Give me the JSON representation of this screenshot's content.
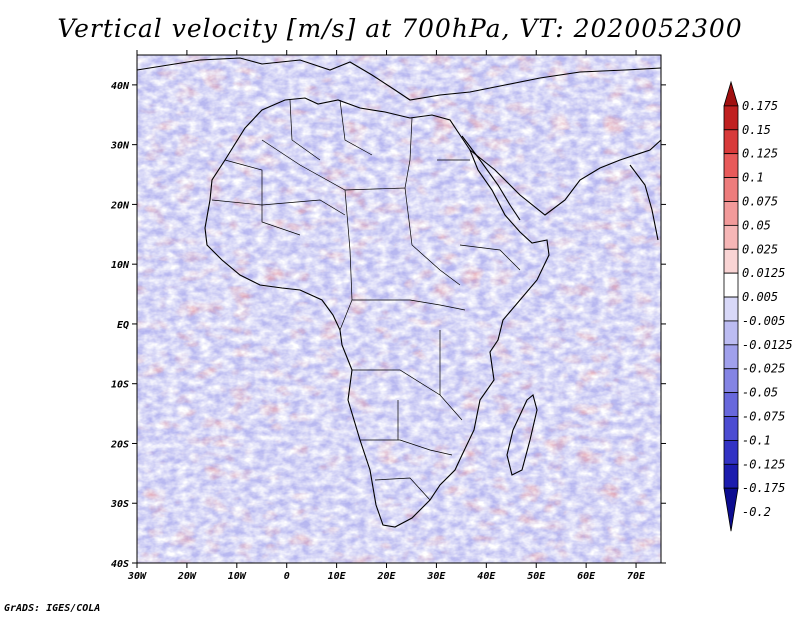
{
  "title": "Vertical velocity [m/s] at 700hPa, VT: 2020052300",
  "footer": "GrADS: IGES/COLA",
  "map": {
    "lon_range": [
      -30,
      75
    ],
    "lat_range": [
      -40,
      45
    ],
    "lon_ticks": [
      "30W",
      "20W",
      "10W",
      "0",
      "10E",
      "20E",
      "30E",
      "40E",
      "50E",
      "60E",
      "70E"
    ],
    "lat_ticks": [
      "40S",
      "30S",
      "20S",
      "10S",
      "EQ",
      "10N",
      "20N",
      "30N",
      "40N"
    ],
    "field": "vertical velocity",
    "level": "700hPa"
  },
  "colorbar": {
    "labels": [
      "0.175",
      "0.15",
      "0.125",
      "0.1",
      "0.075",
      "0.05",
      "0.025",
      "0.0125",
      "0.005",
      "-0.005",
      "-0.0125",
      "-0.025",
      "-0.05",
      "-0.075",
      "-0.1",
      "-0.125",
      "-0.175",
      "-0.2"
    ],
    "colors": [
      "#a01010",
      "#c02020",
      "#d83a3a",
      "#e85a5a",
      "#ee7c7c",
      "#f29a9a",
      "#f6b6b6",
      "#f9d4d4",
      "#ffffff",
      "#d8d8f8",
      "#bcbcf2",
      "#a0a0ec",
      "#8484e4",
      "#6868dc",
      "#4c4cd2",
      "#3232c4",
      "#1c1cae",
      "#0c0c90"
    ]
  }
}
